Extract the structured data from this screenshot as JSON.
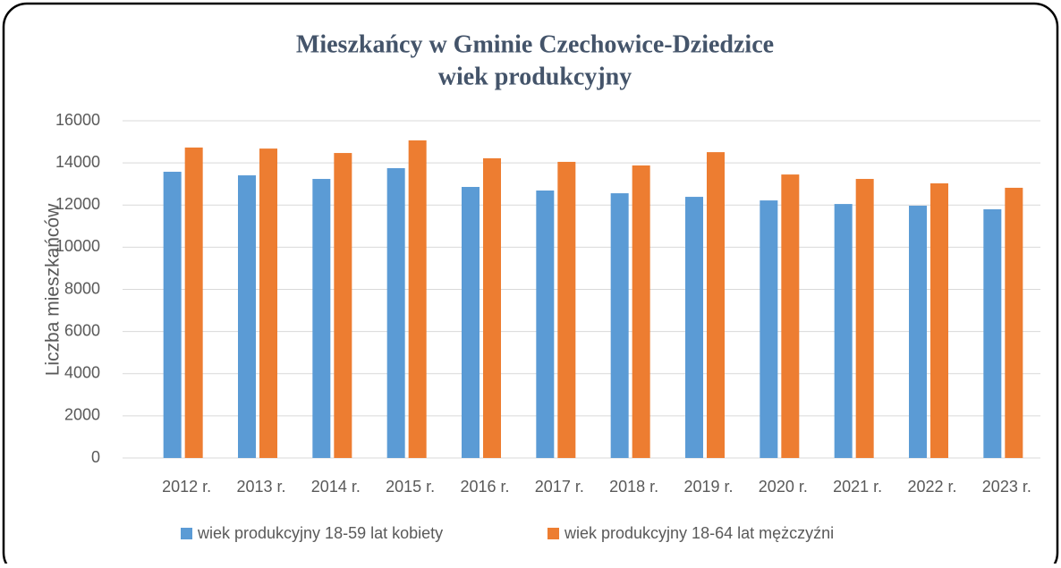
{
  "chart_data": {
    "type": "bar",
    "title": "Mieszkańcy w Gminie Czechowice-Dziedzice",
    "subtitle": "wiek produkcyjny",
    "y_label": "Liczba mieszkańców",
    "categories": [
      "2012 r.",
      "2013 r.",
      "2014 r.",
      "2015 r.",
      "2016 r.",
      "2017 r.",
      "2018 r.",
      "2019 r.",
      "2020 r.",
      "2021 r.",
      "2022 r.",
      "2023 r."
    ],
    "series": [
      {
        "name": "wiek produkcyjny 18-59 lat kobiety",
        "color": "#5b9bd5",
        "values": [
          13580,
          13410,
          13240,
          13750,
          12860,
          12690,
          12560,
          12390,
          12220,
          12050,
          11970,
          11800
        ]
      },
      {
        "name": "wiek produkcyjny 18-64 lat mężczyźni",
        "color": "#ed7d31",
        "values": [
          14730,
          14680,
          14470,
          15070,
          14220,
          14050,
          13880,
          14510,
          13450,
          13240,
          13030,
          12820
        ]
      }
    ],
    "ylim": [
      0,
      16000
    ],
    "yticks": [
      0,
      2000,
      4000,
      6000,
      8000,
      10000,
      12000,
      14000,
      16000
    ],
    "grid": true,
    "legend": "bottom"
  }
}
